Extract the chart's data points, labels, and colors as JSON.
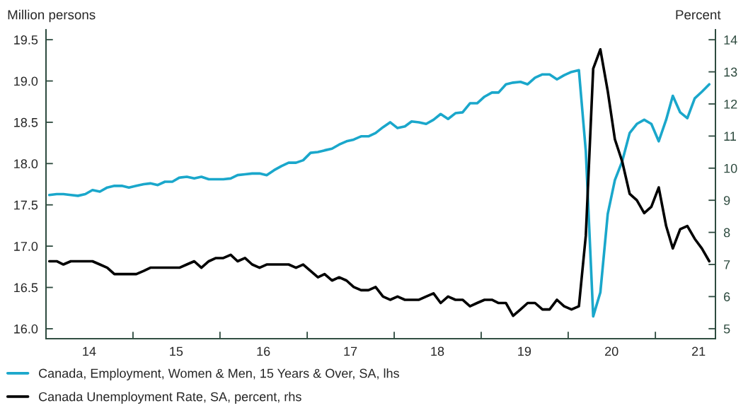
{
  "chart_data": {
    "type": "line",
    "ylabel": "Million persons",
    "y2label": "Percent",
    "x": [
      "2014-01-15",
      "2014-02-15",
      "2014-03-15",
      "2014-04-15",
      "2014-05-15",
      "2014-06-15",
      "2014-07-15",
      "2014-08-15",
      "2014-09-15",
      "2014-10-15",
      "2014-11-15",
      "2014-12-15",
      "2015-01-15",
      "2015-02-15",
      "2015-03-15",
      "2015-04-15",
      "2015-05-15",
      "2015-06-15",
      "2015-07-15",
      "2015-08-15",
      "2015-09-15",
      "2015-10-15",
      "2015-11-15",
      "2015-12-15",
      "2016-01-15",
      "2016-02-15",
      "2016-03-15",
      "2016-04-15",
      "2016-05-15",
      "2016-06-15",
      "2016-07-15",
      "2016-08-15",
      "2016-09-15",
      "2016-10-15",
      "2016-11-15",
      "2016-12-15",
      "2017-01-15",
      "2017-02-15",
      "2017-03-15",
      "2017-04-15",
      "2017-05-15",
      "2017-06-15",
      "2017-07-15",
      "2017-08-15",
      "2017-09-15",
      "2017-10-15",
      "2017-11-15",
      "2017-12-15",
      "2018-01-15",
      "2018-02-15",
      "2018-03-15",
      "2018-04-15",
      "2018-05-15",
      "2018-06-15",
      "2018-07-15",
      "2018-08-15",
      "2018-09-15",
      "2018-10-15",
      "2018-11-15",
      "2018-12-15",
      "2019-01-15",
      "2019-02-15",
      "2019-03-15",
      "2019-04-15",
      "2019-05-15",
      "2019-06-15",
      "2019-07-15",
      "2019-08-15",
      "2019-09-15",
      "2019-10-15",
      "2019-11-15",
      "2019-12-15",
      "2020-01-15",
      "2020-02-15",
      "2020-03-15",
      "2020-04-15",
      "2020-05-15",
      "2020-06-15",
      "2020-07-15",
      "2020-08-15",
      "2020-09-15",
      "2020-10-15",
      "2020-11-15",
      "2020-12-15",
      "2021-01-15",
      "2021-02-15",
      "2021-03-15",
      "2021-04-15",
      "2021-05-15",
      "2021-06-15",
      "2021-07-15",
      "2021-08-15"
    ],
    "series": [
      {
        "name": "Canada, Employment, Women & Men, 15 Years & Over, SA, lhs",
        "color": "#1aa7cb",
        "values": [
          17.62,
          17.63,
          17.63,
          17.62,
          17.61,
          17.63,
          17.68,
          17.66,
          17.71,
          17.73,
          17.73,
          17.71,
          17.73,
          17.75,
          17.76,
          17.74,
          17.78,
          17.78,
          17.83,
          17.84,
          17.82,
          17.84,
          17.81,
          17.81,
          17.81,
          17.82,
          17.86,
          17.87,
          17.88,
          17.88,
          17.86,
          17.92,
          17.97,
          18.01,
          18.01,
          18.04,
          18.13,
          18.14,
          18.16,
          18.18,
          18.23,
          18.27,
          18.29,
          18.33,
          18.33,
          18.37,
          18.44,
          18.5,
          18.43,
          18.45,
          18.51,
          18.5,
          18.48,
          18.53,
          18.6,
          18.54,
          18.61,
          18.62,
          18.73,
          18.73,
          18.81,
          18.86,
          18.86,
          18.96,
          18.98,
          18.99,
          18.96,
          19.04,
          19.08,
          19.08,
          19.02,
          19.07,
          19.11,
          19.13,
          18.15,
          16.15,
          16.44,
          17.39,
          17.8,
          18.03,
          18.37,
          18.48,
          18.53,
          18.48,
          18.27,
          18.53,
          18.82,
          18.62,
          18.55,
          18.79,
          18.87,
          18.96
        ]
      },
      {
        "name": "Canada Unemployment Rate, SA, percent, rhs",
        "color": "#000000",
        "axis": "y2",
        "values": [
          7.1,
          7.1,
          7.0,
          7.1,
          7.1,
          7.1,
          7.1,
          7.0,
          6.9,
          6.7,
          6.7,
          6.7,
          6.7,
          6.8,
          6.9,
          6.9,
          6.9,
          6.9,
          6.9,
          7.0,
          7.1,
          6.9,
          7.1,
          7.2,
          7.2,
          7.3,
          7.1,
          7.2,
          7.0,
          6.9,
          7.0,
          7.0,
          7.0,
          7.0,
          6.9,
          7.0,
          6.8,
          6.6,
          6.7,
          6.5,
          6.6,
          6.5,
          6.3,
          6.2,
          6.2,
          6.3,
          6.0,
          5.9,
          6.0,
          5.9,
          5.9,
          5.9,
          6.0,
          6.1,
          5.8,
          6.0,
          5.9,
          5.9,
          5.7,
          5.8,
          5.9,
          5.9,
          5.8,
          5.8,
          5.4,
          5.6,
          5.8,
          5.8,
          5.6,
          5.6,
          5.9,
          5.7,
          5.6,
          5.7,
          7.9,
          13.1,
          13.7,
          12.4,
          10.9,
          10.2,
          9.2,
          9.0,
          8.6,
          8.8,
          9.4,
          8.2,
          7.5,
          8.1,
          8.2,
          7.8,
          7.5,
          7.1
        ]
      }
    ],
    "xlim": [
      "2014-01-01",
      "2021-09-10"
    ],
    "xticks": [
      {
        "value": "2014-07-01",
        "label": "14"
      },
      {
        "value": "2015-01-01",
        "label": null
      },
      {
        "value": "2015-07-01",
        "label": "15"
      },
      {
        "value": "2016-01-01",
        "label": null
      },
      {
        "value": "2016-07-01",
        "label": "16"
      },
      {
        "value": "2017-01-01",
        "label": null
      },
      {
        "value": "2017-07-01",
        "label": "17"
      },
      {
        "value": "2018-01-01",
        "label": null
      },
      {
        "value": "2018-07-01",
        "label": "18"
      },
      {
        "value": "2019-01-01",
        "label": null
      },
      {
        "value": "2019-07-01",
        "label": "19"
      },
      {
        "value": "2020-01-01",
        "label": null
      },
      {
        "value": "2020-07-01",
        "label": "20"
      },
      {
        "value": "2021-01-01",
        "label": null
      },
      {
        "value": "2021-07-01",
        "label": "21"
      }
    ],
    "ylim": [
      15.88,
      19.62
    ],
    "yticks": [
      {
        "value": 16.0,
        "label": "16.0"
      },
      {
        "value": 16.5,
        "label": "16.5"
      },
      {
        "value": 17.0,
        "label": "17.0"
      },
      {
        "value": 17.5,
        "label": "17.5"
      },
      {
        "value": 18.0,
        "label": "18.0"
      },
      {
        "value": 18.5,
        "label": "18.5"
      },
      {
        "value": 19.0,
        "label": "19.0"
      },
      {
        "value": 19.5,
        "label": "19.5"
      }
    ],
    "y2lim": [
      4.69,
      14.31
    ],
    "y2ticks": [
      5,
      6,
      7,
      8,
      9,
      10,
      11,
      12,
      13,
      14
    ],
    "legend": "bottom",
    "grid": false,
    "marker": "none",
    "line_style": "solid"
  }
}
